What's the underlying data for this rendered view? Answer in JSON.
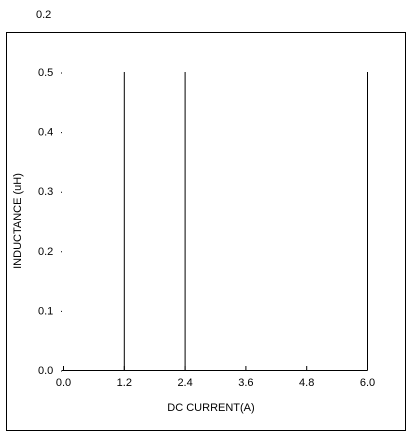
{
  "chart_data": {
    "type": "bar",
    "title": "",
    "top_label": "0.2",
    "xlabel": "DC CURRENT(A)",
    "ylabel": "INDUCTANCE (uH)",
    "xlim": [
      0.0,
      6.0
    ],
    "ylim": [
      0.0,
      0.5
    ],
    "x_ticks": [
      "0.0",
      "1.2",
      "2.4",
      "3.6",
      "4.8",
      "6.0"
    ],
    "y_ticks": [
      "0.0",
      "0.1",
      "0.2",
      "0.3",
      "0.4",
      "0.5"
    ],
    "grid": false,
    "x": [
      1.2,
      2.4,
      6.0
    ],
    "values": [
      0.5,
      0.5,
      0.5
    ]
  }
}
